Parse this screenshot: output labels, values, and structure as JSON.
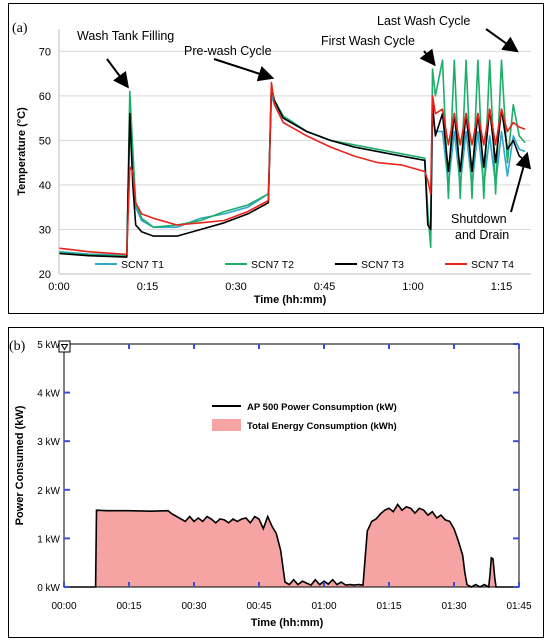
{
  "chart_data": [
    {
      "panel_label": "(a)",
      "type": "line",
      "xlabel": "Time (hh:mm)",
      "ylabel": "Temperature (°C)",
      "xlim": [
        0,
        80
      ],
      "ylim": [
        20,
        75
      ],
      "x_ticks": [
        0,
        15,
        30,
        45,
        60,
        75
      ],
      "x_tick_labels": [
        "0:00",
        "0:15",
        "0:30",
        "0:45",
        "1:00",
        "1:15"
      ],
      "y_ticks": [
        20,
        30,
        40,
        50,
        60,
        70
      ],
      "y_tick_labels": [
        "20",
        "30",
        "40",
        "50",
        "60",
        "70"
      ],
      "grid": "horizontal",
      "legend_position": "bottom",
      "series": [
        {
          "name": "SCN7 T1",
          "color": "#33a6cc",
          "x": [
            0,
            5,
            11.5,
            12,
            12.5,
            13,
            14,
            16,
            20,
            24,
            28,
            32,
            35.5,
            36,
            36.5,
            38,
            42,
            46,
            50,
            54,
            58,
            62,
            62.5,
            63,
            63.3,
            63.8,
            65,
            66,
            67,
            68,
            69,
            70,
            71,
            72,
            73,
            74,
            75,
            76,
            77,
            78,
            79
          ],
          "y": [
            25,
            24.5,
            24.2,
            55,
            45,
            35,
            32,
            30.5,
            30.5,
            32.5,
            33.5,
            35,
            38,
            60,
            58,
            55,
            52,
            50,
            48.5,
            47.5,
            46.5,
            45.5,
            33,
            29,
            55,
            52,
            52,
            40,
            52,
            40,
            52,
            40,
            52,
            40,
            51,
            40,
            52,
            42,
            51,
            48,
            47.5
          ]
        },
        {
          "name": "SCN7 T2",
          "color": "#1fae6a",
          "x": [
            0,
            5,
            11.5,
            12,
            12.5,
            13,
            14,
            16,
            20,
            24,
            28,
            32,
            35.5,
            36,
            36.5,
            38,
            42,
            46,
            50,
            54,
            58,
            62,
            62.5,
            63,
            63.3,
            63.8,
            65,
            66,
            67,
            68,
            69,
            70,
            71,
            72,
            73,
            74,
            75,
            76,
            77,
            78,
            79
          ],
          "y": [
            24.8,
            24.3,
            24,
            61,
            48,
            36,
            32.5,
            30.5,
            31,
            32,
            34,
            35.5,
            38,
            61,
            59,
            55.5,
            52,
            50,
            49,
            48,
            47,
            46,
            34,
            26,
            66,
            60,
            68,
            37,
            68,
            37,
            68,
            37,
            68,
            37,
            68,
            38,
            68,
            45,
            58,
            51,
            49.5
          ]
        },
        {
          "name": "SCN7 T3",
          "color": "#000000",
          "x": [
            0,
            5,
            11.5,
            12,
            12.5,
            13,
            14,
            16,
            20,
            24,
            28,
            32,
            35.5,
            36,
            36.5,
            38,
            42,
            46,
            50,
            54,
            58,
            62,
            62.5,
            63,
            63.3,
            63.8,
            65,
            66,
            67,
            68,
            69,
            70,
            71,
            72,
            73,
            74,
            75,
            76,
            77,
            78,
            79
          ],
          "y": [
            24.6,
            24.1,
            23.8,
            56,
            40,
            31,
            29.5,
            28.5,
            28.5,
            30,
            31.5,
            33.5,
            36,
            62,
            59,
            55,
            52,
            50,
            48.5,
            47.5,
            46.5,
            45.5,
            31,
            30,
            58,
            51,
            56,
            43,
            56,
            43,
            56,
            43,
            56,
            44,
            57,
            45,
            57,
            48,
            50,
            46.5,
            45.5
          ]
        },
        {
          "name": "SCN7 T4",
          "color": "#e8241c",
          "x": [
            0,
            5,
            11.5,
            12,
            12.5,
            13,
            14,
            16,
            20,
            24,
            28,
            32,
            35.5,
            36,
            36.5,
            38,
            42,
            46,
            50,
            54,
            58,
            62,
            62.5,
            63,
            63.3,
            63.8,
            65,
            66,
            67,
            68,
            69,
            70,
            71,
            72,
            73,
            74,
            75,
            76,
            77,
            78,
            79
          ],
          "y": [
            25.8,
            25,
            24.4,
            44,
            43,
            36,
            33.5,
            32.5,
            31,
            31.5,
            32,
            34,
            36.5,
            63,
            58,
            54,
            51,
            48.5,
            46.5,
            45,
            44.5,
            43,
            41,
            38,
            60,
            56,
            57,
            49,
            56,
            49,
            56,
            49,
            56,
            49,
            57,
            49,
            57,
            52,
            54,
            53,
            52.5
          ]
        }
      ],
      "annotations": [
        "Wash Tank Filling",
        "Pre-wash Cycle",
        "First Wash Cycle",
        "Last Wash Cycle",
        "Shutdown",
        "and Drain"
      ]
    },
    {
      "panel_label": "(b)",
      "type": "area",
      "xlabel": "Time (hh:mm)",
      "ylabel": "Power Consumed (kW)",
      "xlim": [
        0,
        105
      ],
      "ylim": [
        0,
        5
      ],
      "x_ticks": [
        0,
        15,
        30,
        45,
        60,
        75,
        90,
        105
      ],
      "x_tick_labels": [
        "00:00",
        "00:15",
        "00:30",
        "00:45",
        "01:00",
        "01:15",
        "01:30",
        "01:45"
      ],
      "y_ticks": [
        0,
        1,
        2,
        3,
        4,
        5
      ],
      "y_tick_labels": [
        "0 kW",
        "1 kW",
        "2 kW",
        "3 kW",
        "4 kW",
        "5 kW"
      ],
      "grid": "none",
      "legend_position": "top-center",
      "series": [
        {
          "name": "AP 500 Power Consumption (kW)",
          "color": "#000000",
          "fill": "#f5a3a3",
          "x": [
            0,
            7.3,
            7.5,
            10,
            15,
            20,
            24,
            25,
            26,
            28,
            29,
            30,
            31,
            32,
            33,
            34,
            35,
            36,
            37,
            38,
            39,
            40,
            41,
            42,
            43,
            44,
            45,
            46,
            47,
            48,
            49,
            50,
            51,
            52,
            53,
            54,
            55,
            57,
            58,
            59,
            60,
            61,
            62,
            63,
            64,
            65,
            66,
            67,
            68,
            69,
            70,
            70.5,
            71,
            72,
            73,
            74,
            75,
            76,
            77,
            78,
            79,
            80,
            81,
            82,
            83,
            84,
            85,
            86,
            87,
            88,
            89,
            90,
            91,
            92,
            92.5,
            93,
            94,
            95,
            96,
            97,
            98,
            98.3,
            98.6,
            99,
            99.4,
            99.7,
            100,
            105
          ],
          "y": [
            0,
            0,
            1.58,
            1.57,
            1.57,
            1.56,
            1.57,
            1.5,
            1.45,
            1.35,
            1.45,
            1.35,
            1.42,
            1.35,
            1.45,
            1.4,
            1.32,
            1.4,
            1.38,
            1.32,
            1.4,
            1.35,
            1.4,
            1.42,
            1.32,
            1.45,
            1.4,
            1.2,
            1.45,
            1.25,
            1.1,
            0.75,
            0.1,
            0.05,
            0.15,
            0.05,
            0.12,
            0.04,
            0.15,
            0.05,
            0.12,
            0.06,
            0.15,
            0.05,
            0.1,
            0.04,
            0.05,
            0.04,
            0.05,
            0.04,
            1.15,
            1.25,
            1.35,
            1.4,
            1.5,
            1.58,
            1.62,
            1.55,
            1.7,
            1.58,
            1.65,
            1.62,
            1.52,
            1.62,
            1.58,
            1.48,
            1.55,
            1.42,
            1.48,
            1.38,
            1.35,
            1.2,
            0.95,
            0.65,
            0.3,
            0.05,
            0,
            0.05,
            0,
            0.05,
            0,
            0.25,
            0.6,
            0.58,
            0.2,
            0,
            0,
            0
          ]
        }
      ],
      "legend": [
        "AP 500 Power Consumption (kW)",
        "Total Energy Consumption (kWh)"
      ]
    }
  ],
  "colors": {
    "energy_fill": "#f5a3a3",
    "plot_bg_b": "#ffffff",
    "tick_blue": "#3a4fd6"
  },
  "icons": {
    "panel_b_corner": "triangle-down-icon"
  }
}
